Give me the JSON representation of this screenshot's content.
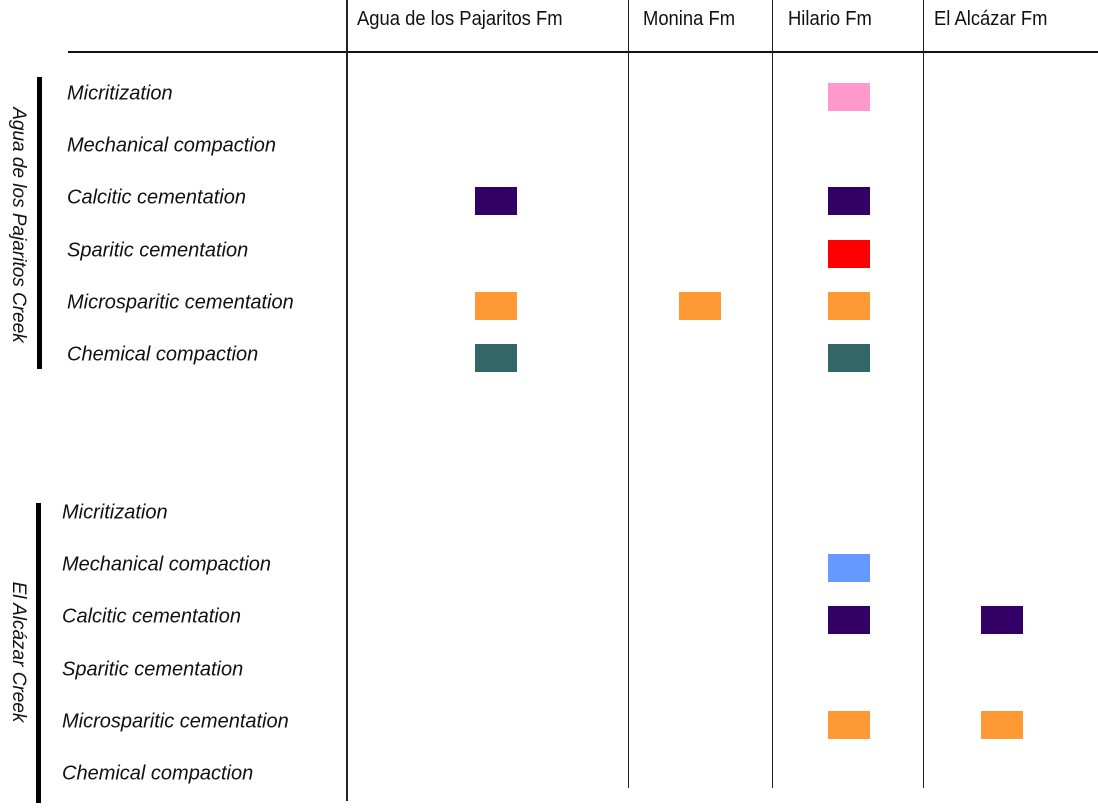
{
  "formations": [
    "Agua de los Pajaritos Fm",
    "Monina Fm",
    "Hilario Fm",
    "El Alcázar Fm"
  ],
  "colors": {
    "micritization": "#FF99CC",
    "mechanical": "#6699FF",
    "calcitic": "#330066",
    "sparitic": "#FF0000",
    "microsparitic": "#FF9933",
    "chemical": "#336666"
  },
  "groups": [
    {
      "name": "Agua de los Pajaritos Creek",
      "rows": [
        {
          "label": "Micritization",
          "color_key": "micritization",
          "present_in": [
            "Hilario Fm"
          ]
        },
        {
          "label": "Mechanical compaction",
          "color_key": "mechanical",
          "present_in": []
        },
        {
          "label": "Calcitic cementation",
          "color_key": "calcitic",
          "present_in": [
            "Agua de los Pajaritos Fm",
            "Hilario Fm"
          ]
        },
        {
          "label": "Sparitic cementation",
          "color_key": "sparitic",
          "present_in": [
            "Hilario Fm"
          ]
        },
        {
          "label": "Microsparitic cementation",
          "color_key": "microsparitic",
          "present_in": [
            "Agua de los Pajaritos Fm",
            "Monina Fm",
            "Hilario Fm"
          ]
        },
        {
          "label": "Chemical compaction",
          "color_key": "chemical",
          "present_in": [
            "Agua de los Pajaritos Fm",
            "Hilario Fm"
          ]
        }
      ]
    },
    {
      "name": "El Alcázar Creek",
      "rows": [
        {
          "label": "Micritization",
          "color_key": "micritization",
          "present_in": []
        },
        {
          "label": "Mechanical compaction",
          "color_key": "mechanical",
          "present_in": [
            "Hilario Fm"
          ]
        },
        {
          "label": "Calcitic cementation",
          "color_key": "calcitic",
          "present_in": [
            "Hilario Fm",
            "El Alcázar Fm"
          ]
        },
        {
          "label": "Sparitic cementation",
          "color_key": "sparitic",
          "present_in": []
        },
        {
          "label": "Microsparitic cementation",
          "color_key": "microsparitic",
          "present_in": [
            "Hilario Fm",
            "El Alcázar Fm"
          ]
        },
        {
          "label": "Chemical compaction",
          "color_key": "chemical",
          "present_in": []
        }
      ]
    }
  ]
}
